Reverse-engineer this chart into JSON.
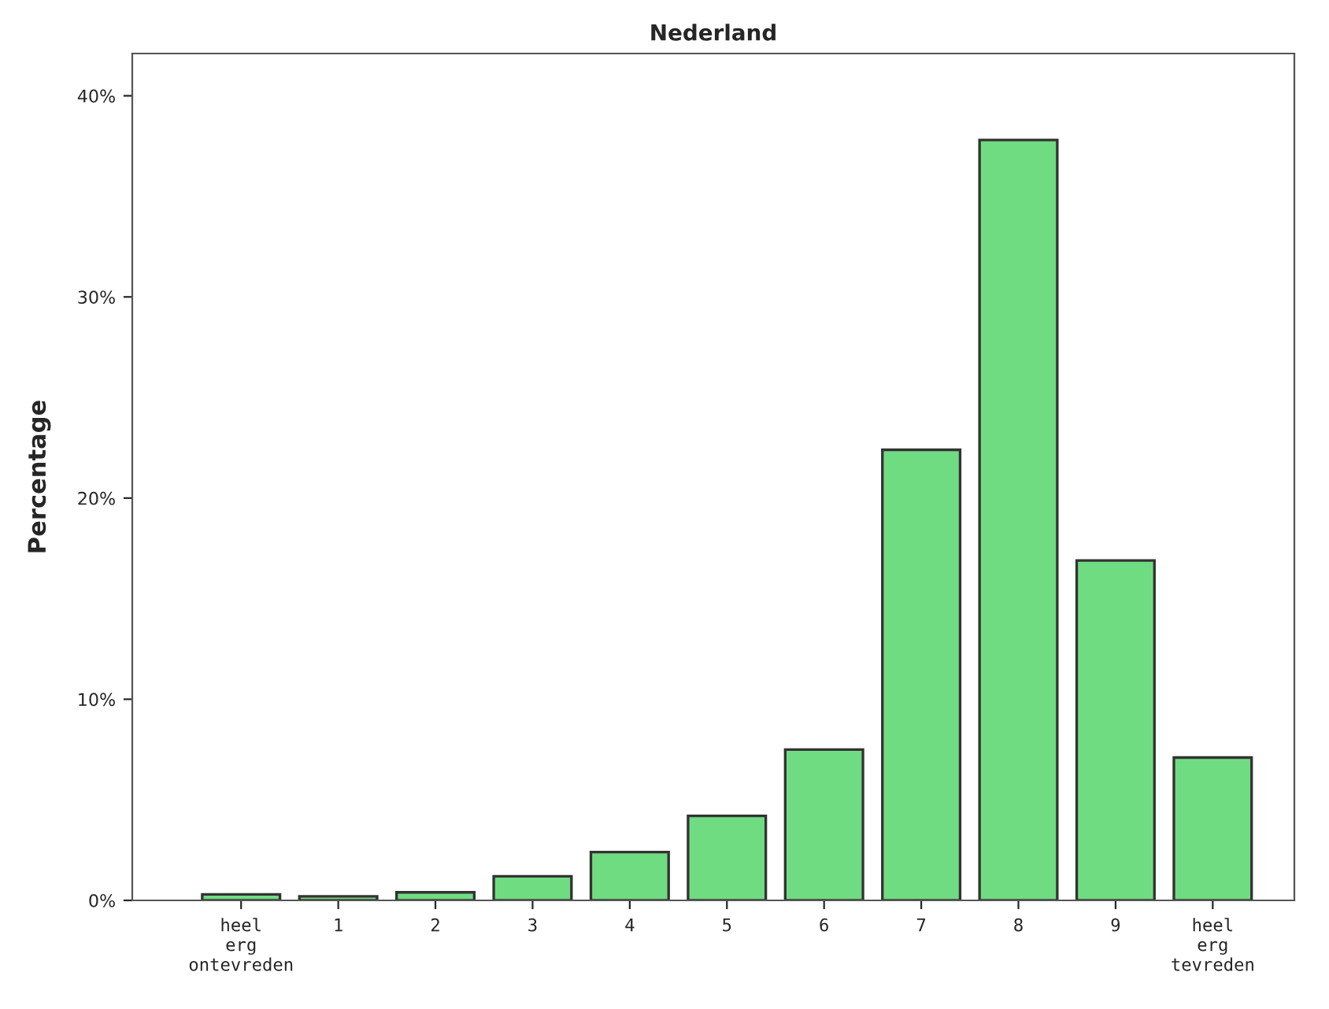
{
  "chart_data": {
    "type": "bar",
    "title": "Nederland",
    "ylabel": "Percentage",
    "categories": [
      "heel\nerg\nontevreden",
      "1",
      "2",
      "3",
      "4",
      "5",
      "6",
      "7",
      "8",
      "9",
      "heel\nerg\ntevreden"
    ],
    "series": [
      {
        "color": "#70dc82",
        "values": [
          0.3,
          0.2,
          0.4,
          1.2,
          2.4,
          4.2,
          7.5,
          22.4,
          37.8,
          16.9,
          7.1
        ]
      }
    ],
    "ylim": [
      0,
      42.1
    ],
    "yticks": [
      {
        "value": 0,
        "label": "0%"
      },
      {
        "value": 10,
        "label": "10%"
      },
      {
        "value": 20,
        "label": "20%"
      },
      {
        "value": 30,
        "label": "30%"
      },
      {
        "value": 40,
        "label": "40%"
      }
    ],
    "grid": false,
    "legend": false
  }
}
